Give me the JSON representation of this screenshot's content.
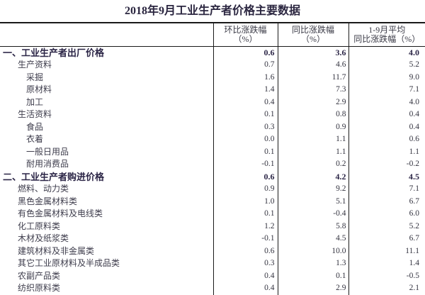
{
  "title": "2018年9月工业生产者价格主要数据",
  "table": {
    "header": {
      "row_label_column": "",
      "mom": {
        "line1": "环比涨跌幅",
        "line2": "（%）"
      },
      "yoy": {
        "line1": "同比涨跌幅",
        "line2": "（%）"
      },
      "ytd_avg": {
        "line1": "1-9月平均",
        "line2": "同比涨跌幅（%）"
      }
    },
    "rows": [
      {
        "label": "一、工业生产者出厂价格",
        "indent": 0,
        "bold": true,
        "mom": "0.6",
        "yoy": "3.6",
        "ytd_avg": "4.0"
      },
      {
        "label": "生产资料",
        "indent": 1,
        "bold": false,
        "mom": "0.7",
        "yoy": "4.6",
        "ytd_avg": "5.2"
      },
      {
        "label": "采掘",
        "indent": 2,
        "bold": false,
        "mom": "1.6",
        "yoy": "11.7",
        "ytd_avg": "9.0"
      },
      {
        "label": "原材料",
        "indent": 2,
        "bold": false,
        "mom": "1.4",
        "yoy": "7.3",
        "ytd_avg": "7.1"
      },
      {
        "label": "加工",
        "indent": 2,
        "bold": false,
        "mom": "0.4",
        "yoy": "2.9",
        "ytd_avg": "4.0"
      },
      {
        "label": "生活资料",
        "indent": 1,
        "bold": false,
        "mom": "0.1",
        "yoy": "0.8",
        "ytd_avg": "0.4"
      },
      {
        "label": "食品",
        "indent": 2,
        "bold": false,
        "mom": "0.3",
        "yoy": "0.9",
        "ytd_avg": "0.4"
      },
      {
        "label": "衣着",
        "indent": 2,
        "bold": false,
        "mom": "0.0",
        "yoy": "1.1",
        "ytd_avg": "0.6"
      },
      {
        "label": "一般日用品",
        "indent": 2,
        "bold": false,
        "mom": "0.1",
        "yoy": "1.1",
        "ytd_avg": "1.1"
      },
      {
        "label": "耐用消费品",
        "indent": 2,
        "bold": false,
        "mom": "-0.1",
        "yoy": "0.2",
        "ytd_avg": "-0.2"
      },
      {
        "label": "二、工业生产者购进价格",
        "indent": 0,
        "bold": true,
        "mom": "0.6",
        "yoy": "4.2",
        "ytd_avg": "4.5"
      },
      {
        "label": "燃料、动力类",
        "indent": 1,
        "bold": false,
        "mom": "0.9",
        "yoy": "9.2",
        "ytd_avg": "7.1"
      },
      {
        "label": "黑色金属材料类",
        "indent": 1,
        "bold": false,
        "mom": "1.0",
        "yoy": "5.1",
        "ytd_avg": "6.7"
      },
      {
        "label": "有色金属材料及电线类",
        "indent": 1,
        "bold": false,
        "mom": "0.1",
        "yoy": "-0.4",
        "ytd_avg": "6.0"
      },
      {
        "label": "化工原料类",
        "indent": 1,
        "bold": false,
        "mom": "1.2",
        "yoy": "5.8",
        "ytd_avg": "5.2"
      },
      {
        "label": "木材及纸浆类",
        "indent": 1,
        "bold": false,
        "mom": "-0.1",
        "yoy": "4.5",
        "ytd_avg": "6.7"
      },
      {
        "label": "建筑材料及非金属类",
        "indent": 1,
        "bold": false,
        "mom": "0.6",
        "yoy": "10.0",
        "ytd_avg": "11.1"
      },
      {
        "label": "其它工业原材料及半成品类",
        "indent": 1,
        "bold": false,
        "mom": "0.3",
        "yoy": "1.3",
        "ytd_avg": "1.4"
      },
      {
        "label": "农副产品类",
        "indent": 1,
        "bold": false,
        "mom": "0.4",
        "yoy": "0.1",
        "ytd_avg": "-0.5"
      },
      {
        "label": "纺织原料类",
        "indent": 1,
        "bold": false,
        "mom": "0.4",
        "yoy": "2.9",
        "ytd_avg": "2.1"
      }
    ]
  },
  "chart_data": {
    "type": "table",
    "title": "2018年9月工业生产者价格主要数据",
    "columns": [
      "环比涨跌幅（%）",
      "同比涨跌幅（%）",
      "1-9月平均同比涨跌幅（%）"
    ],
    "categories": [
      "一、工业生产者出厂价格",
      "生产资料",
      "采掘",
      "原材料",
      "加工",
      "生活资料",
      "食品",
      "衣着",
      "一般日用品",
      "耐用消费品",
      "二、工业生产者购进价格",
      "燃料、动力类",
      "黑色金属材料类",
      "有色金属材料及电线类",
      "化工原料类",
      "木材及纸浆类",
      "建筑材料及非金属类",
      "其它工业原材料及半成品类",
      "农副产品类",
      "纺织原料类"
    ],
    "series": [
      {
        "name": "环比涨跌幅（%）",
        "values": [
          0.6,
          0.7,
          1.6,
          1.4,
          0.4,
          0.1,
          0.3,
          0.0,
          0.1,
          -0.1,
          0.6,
          0.9,
          1.0,
          0.1,
          1.2,
          -0.1,
          0.6,
          0.3,
          0.4,
          0.4
        ]
      },
      {
        "name": "同比涨跌幅（%）",
        "values": [
          3.6,
          4.6,
          11.7,
          7.3,
          2.9,
          0.8,
          0.9,
          1.1,
          1.1,
          0.2,
          4.2,
          9.2,
          5.1,
          -0.4,
          5.8,
          4.5,
          10.0,
          1.3,
          0.1,
          2.9
        ]
      },
      {
        "name": "1-9月平均同比涨跌幅（%）",
        "values": [
          4.0,
          5.2,
          9.0,
          7.1,
          4.0,
          0.4,
          0.4,
          0.6,
          1.1,
          -0.2,
          4.5,
          7.1,
          6.7,
          6.0,
          5.2,
          6.7,
          11.1,
          1.4,
          -0.5,
          2.1
        ]
      }
    ]
  },
  "colors": {
    "background": "#ffffff",
    "border": "#1a1a1a",
    "title_text": "#2b2640",
    "bold_row_text": "#2b2546",
    "label_text": "#3e3d4c",
    "number_text": "#343440"
  }
}
